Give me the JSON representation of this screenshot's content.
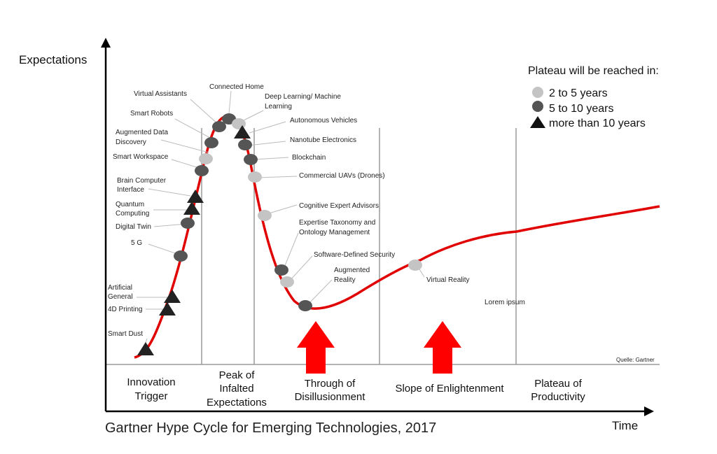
{
  "chart_data": {
    "type": "line",
    "title": "Gartner Hype Cycle for Emerging Technologies, 2017",
    "ylabel": "Expectations",
    "xlabel": "Time",
    "source": "Quelle: Gartner",
    "curve_color": "#e00000",
    "phases": [
      {
        "lines": [
          "Innovation",
          "Trigger"
        ]
      },
      {
        "lines": [
          "Peak of",
          "Infalted",
          "Expectations"
        ]
      },
      {
        "lines": [
          "Through of",
          "Disillusionment"
        ]
      },
      {
        "lines": [
          "Slope of Enlightenment"
        ]
      },
      {
        "lines": [
          "Plateau of",
          "Productivity"
        ]
      }
    ],
    "legend": {
      "title": "Plateau will be reached in:",
      "items": [
        {
          "label": "2 to 5 years",
          "marker": "circle",
          "color": "#c4c4c4"
        },
        {
          "label": "5 to 10 years",
          "marker": "circle",
          "color": "#555555"
        },
        {
          "label": "more than 10 years",
          "marker": "triangle",
          "color": "#111111"
        }
      ]
    },
    "technologies": [
      {
        "name": "Smart Dust",
        "category": "more than 10 years"
      },
      {
        "name": "4D Printing",
        "category": "more than 10 years"
      },
      {
        "name": "Artificial General",
        "category": "more than 10 years"
      },
      {
        "name": "5 G",
        "category": "5 to 10 years"
      },
      {
        "name": "Digital Twin",
        "category": "5 to 10 years"
      },
      {
        "name": "Quantum Computing",
        "category": "more than 10 years"
      },
      {
        "name": "Brain Computer Interface",
        "category": "more than 10 years"
      },
      {
        "name": "Smart Workspace",
        "category": "5 to 10 years"
      },
      {
        "name": "Augmented Data Discovery",
        "category": "2 to 5 years"
      },
      {
        "name": "Smart Robots",
        "category": "5 to 10 years"
      },
      {
        "name": "Virtual Assistants",
        "category": "5 to 10 years"
      },
      {
        "name": "Connected Home",
        "category": "5 to 10 years"
      },
      {
        "name": "Deep Learning/ Machine Learning",
        "category": "2 to 5 years"
      },
      {
        "name": "Autonomous Vehicles",
        "category": "more than 10 years"
      },
      {
        "name": "Nanotube Electronics",
        "category": "5 to 10 years"
      },
      {
        "name": "Blockchain",
        "category": "5 to 10 years"
      },
      {
        "name": "Commercial UAVs (Drones)",
        "category": "2 to 5 years"
      },
      {
        "name": "Cognitive Expert Advisors",
        "category": "2 to 5 years"
      },
      {
        "name": "Expertise Taxonomy and Ontology Management",
        "category": "5 to 10 years"
      },
      {
        "name": "Software-Defined Security",
        "category": "2 to 5 years"
      },
      {
        "name": "Augmented Reality",
        "category": "5 to 10 years"
      },
      {
        "name": "Virtual Reality",
        "category": "2 to 5 years"
      },
      {
        "name": "Lorem ipsum",
        "category": null
      }
    ]
  }
}
